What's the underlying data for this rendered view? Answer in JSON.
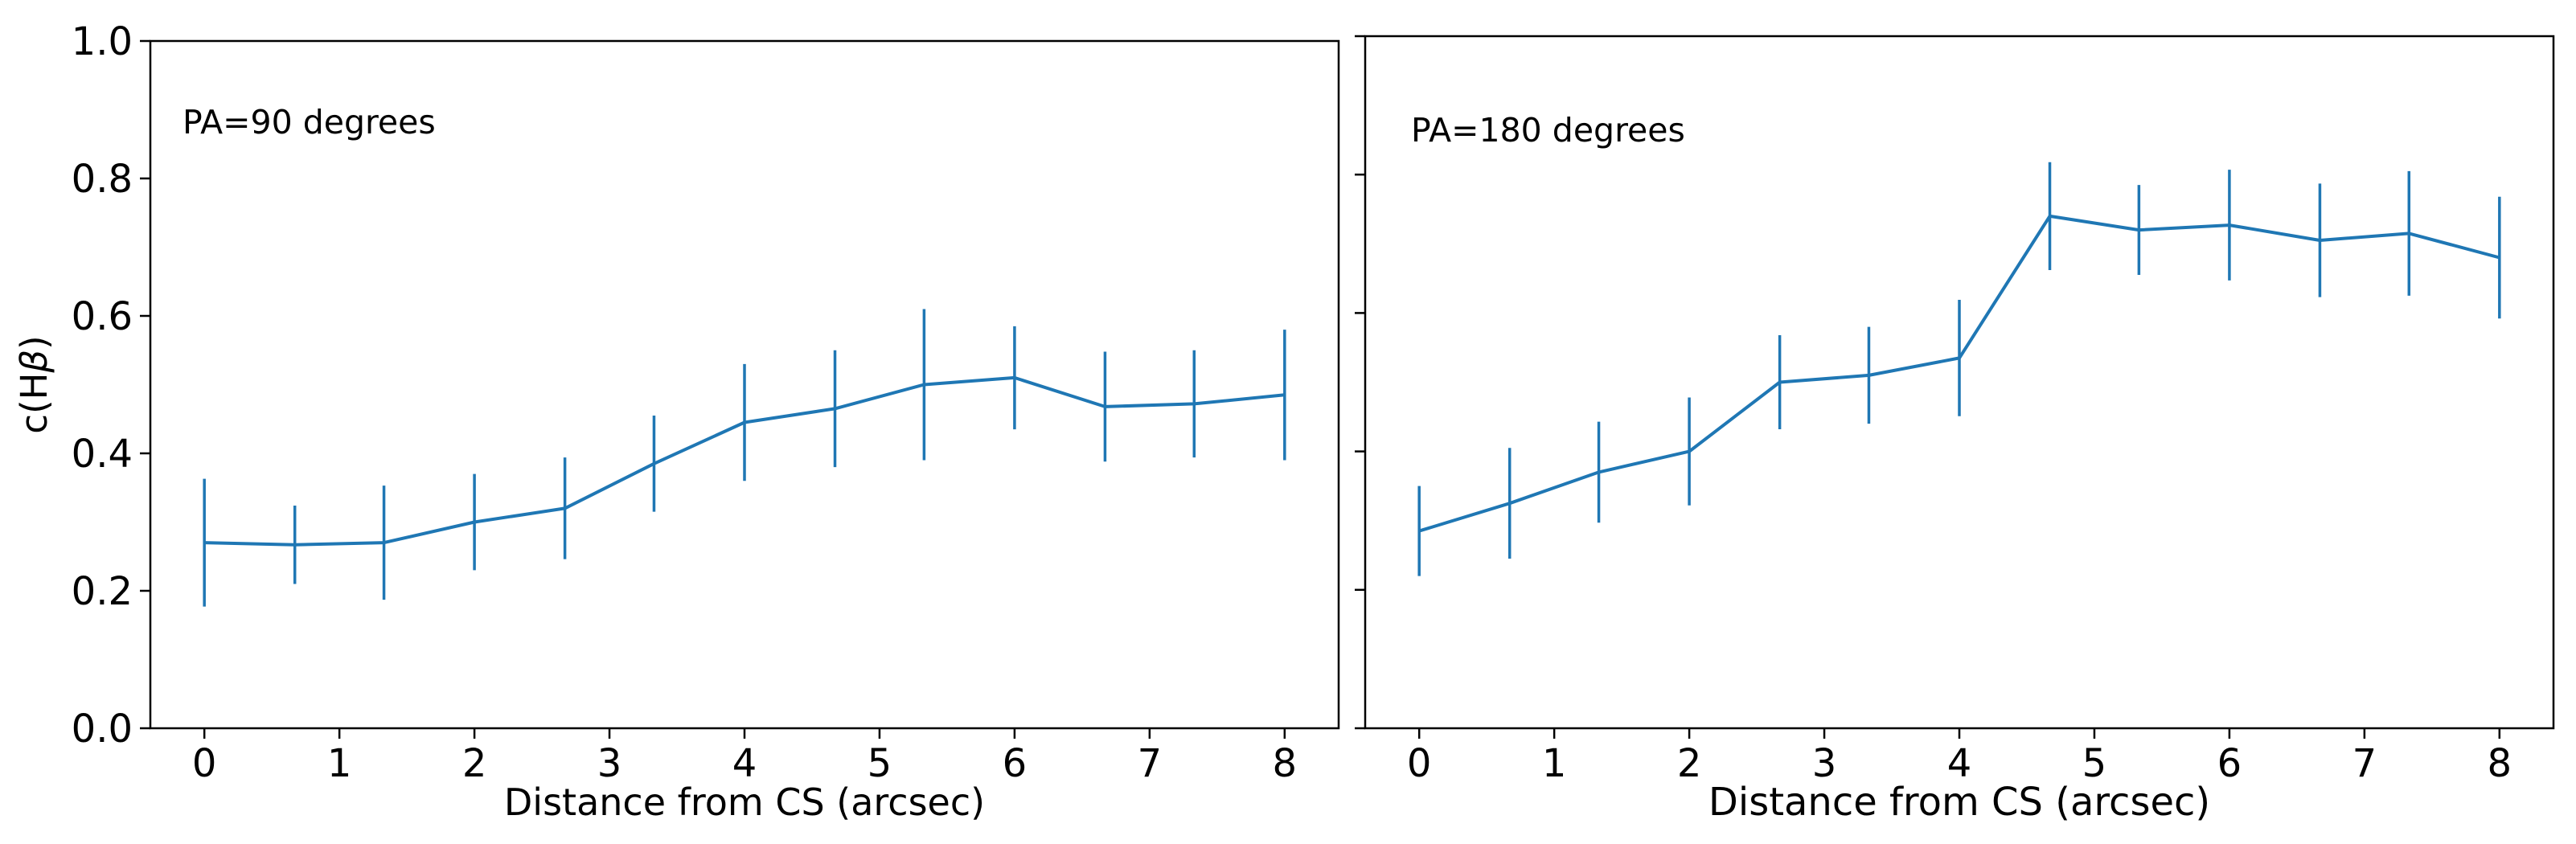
{
  "figure": {
    "background": "#ffffff",
    "axis_color": "#000000",
    "line_color": "#1f77b4"
  },
  "chart_data": [
    {
      "type": "line",
      "annotation": "PA=90 degrees",
      "xlabel": "Distance from CS (arcsec)",
      "ylabel": "c(Hβ)",
      "errorbars": true,
      "grid": false,
      "legend": null,
      "xlim": [
        -0.4,
        8.4
      ],
      "ylim": [
        0.0,
        1.0
      ],
      "xticks": [
        0,
        1,
        2,
        3,
        4,
        5,
        6,
        7,
        8
      ],
      "xtick_labels": [
        "0",
        "1",
        "2",
        "3",
        "4",
        "5",
        "6",
        "7",
        "8"
      ],
      "yticks": [
        0.0,
        0.2,
        0.4,
        0.6,
        0.8,
        1.0
      ],
      "ytick_labels": [
        "0.0",
        "0.2",
        "0.4",
        "0.6",
        "0.8",
        "1.0"
      ],
      "x": [
        0,
        0.67,
        1.33,
        2.0,
        2.67,
        3.33,
        4.0,
        4.67,
        5.33,
        6.0,
        6.67,
        7.33,
        8.0
      ],
      "y": [
        0.27,
        0.267,
        0.27,
        0.3,
        0.32,
        0.385,
        0.445,
        0.465,
        0.5,
        0.51,
        0.468,
        0.472,
        0.485
      ],
      "yerr": [
        0.093,
        0.057,
        0.083,
        0.07,
        0.074,
        0.07,
        0.085,
        0.085,
        0.11,
        0.075,
        0.08,
        0.078,
        0.095
      ]
    },
    {
      "type": "line",
      "annotation": "PA=180 degrees",
      "xlabel": "Distance from CS (arcsec)",
      "ylabel": "",
      "errorbars": true,
      "grid": false,
      "legend": null,
      "xlim": [
        -0.4,
        8.4
      ],
      "ylim": [
        0.0,
        1.0
      ],
      "xticks": [
        0,
        1,
        2,
        3,
        4,
        5,
        6,
        7,
        8
      ],
      "xtick_labels": [
        "0",
        "1",
        "2",
        "3",
        "4",
        "5",
        "6",
        "7",
        "8"
      ],
      "yticks": [
        0.0,
        0.2,
        0.4,
        0.6,
        0.8,
        1.0
      ],
      "ytick_labels": [],
      "x": [
        0,
        0.67,
        1.33,
        2.0,
        2.67,
        3.33,
        4.0,
        4.67,
        5.33,
        6.0,
        6.67,
        7.33,
        8.0
      ],
      "y": [
        0.285,
        0.325,
        0.37,
        0.4,
        0.5,
        0.51,
        0.535,
        0.74,
        0.72,
        0.727,
        0.705,
        0.715,
        0.68
      ],
      "yerr": [
        0.065,
        0.08,
        0.073,
        0.078,
        0.068,
        0.07,
        0.084,
        0.078,
        0.065,
        0.08,
        0.082,
        0.09,
        0.088
      ]
    }
  ]
}
